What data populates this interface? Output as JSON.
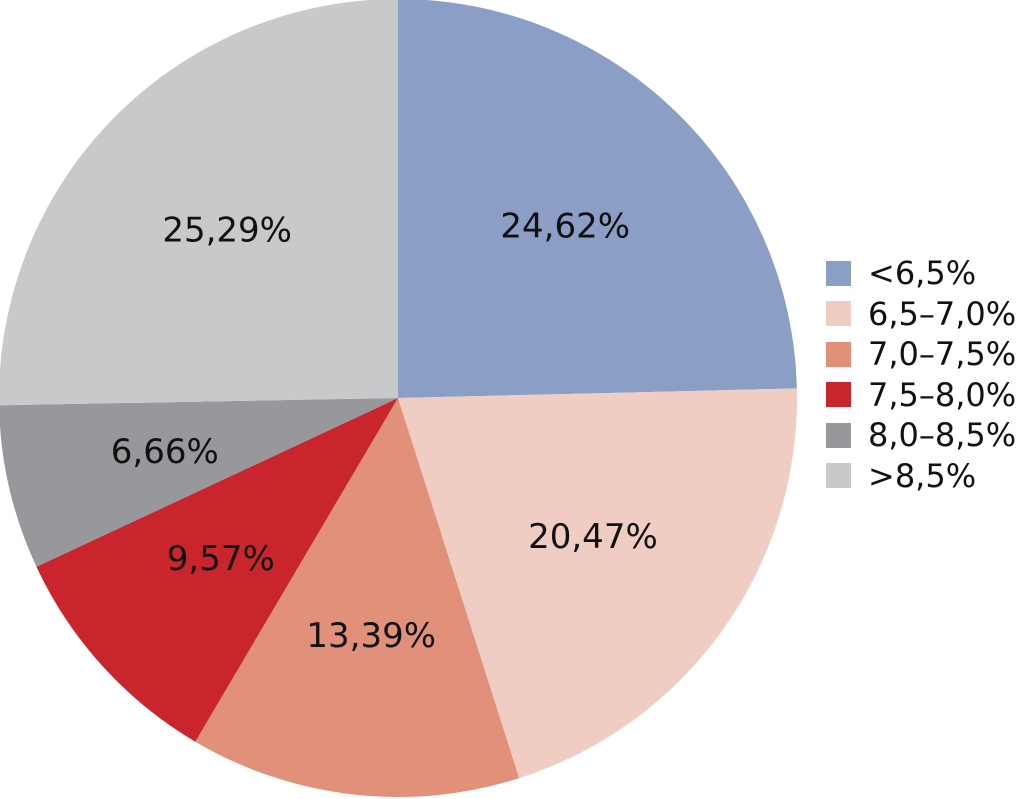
{
  "chart_data": {
    "type": "pie",
    "title": "",
    "start_angle_deg": 0,
    "direction": "clockwise",
    "legend_position": "right",
    "slices": [
      {
        "label": "<6,5%",
        "value": 24.62,
        "value_text": "24,62%",
        "color": "#8b9fc6"
      },
      {
        "label": "6,5–7,0%",
        "value": 20.47,
        "value_text": "20,47%",
        "color": "#f0cdc2"
      },
      {
        "label": "7,0–7,5%",
        "value": 13.39,
        "value_text": "13,39%",
        "color": "#e1917a"
      },
      {
        "label": "7,5–8,0%",
        "value": 9.57,
        "value_text": "9,57%",
        "color": "#c9252d"
      },
      {
        "label": "8,0–8,5%",
        "value": 6.66,
        "value_text": "6,66%",
        "color": "#97989c"
      },
      {
        "label": ">8,5%",
        "value": 25.29,
        "value_text": "25,29%",
        "color": "#c8c9cb"
      }
    ]
  }
}
